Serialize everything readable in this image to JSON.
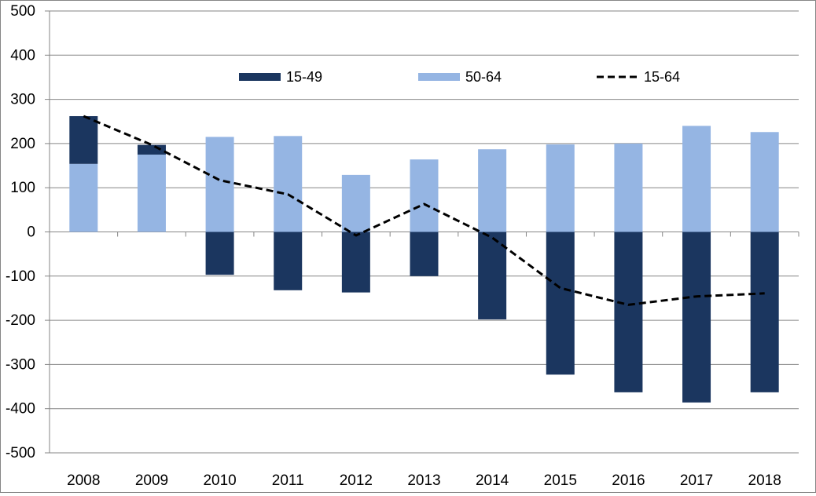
{
  "chart_data": {
    "type": "bar",
    "stacked": true,
    "title": "",
    "xlabel": "",
    "ylabel": "",
    "categories": [
      "2008",
      "2009",
      "2010",
      "2011",
      "2012",
      "2013",
      "2014",
      "2015",
      "2016",
      "2017",
      "2018"
    ],
    "ylim": [
      -500,
      500
    ],
    "yticks": [
      "500",
      "400",
      "300",
      "200",
      "100",
      "0",
      "-100",
      "-200",
      "-300",
      "-400",
      "-500"
    ],
    "grid": true,
    "legend_position": "top",
    "series": [
      {
        "name": "15-49",
        "kind": "bar",
        "color": "#1b365f",
        "values": [
          108,
          22,
          -97,
          -132,
          -137,
          -100,
          -198,
          -323,
          -363,
          -386,
          -363
        ]
      },
      {
        "name": "50-64",
        "kind": "bar",
        "color": "#95b5e3",
        "values": [
          154,
          175,
          215,
          217,
          129,
          164,
          187,
          198,
          200,
          240,
          226
        ]
      },
      {
        "name": "15-64",
        "kind": "line",
        "style": "dashed",
        "color": "#000000",
        "values": [
          262,
          197,
          117,
          85,
          -8,
          63,
          -13,
          -127,
          -165,
          -146,
          -139
        ]
      }
    ]
  }
}
